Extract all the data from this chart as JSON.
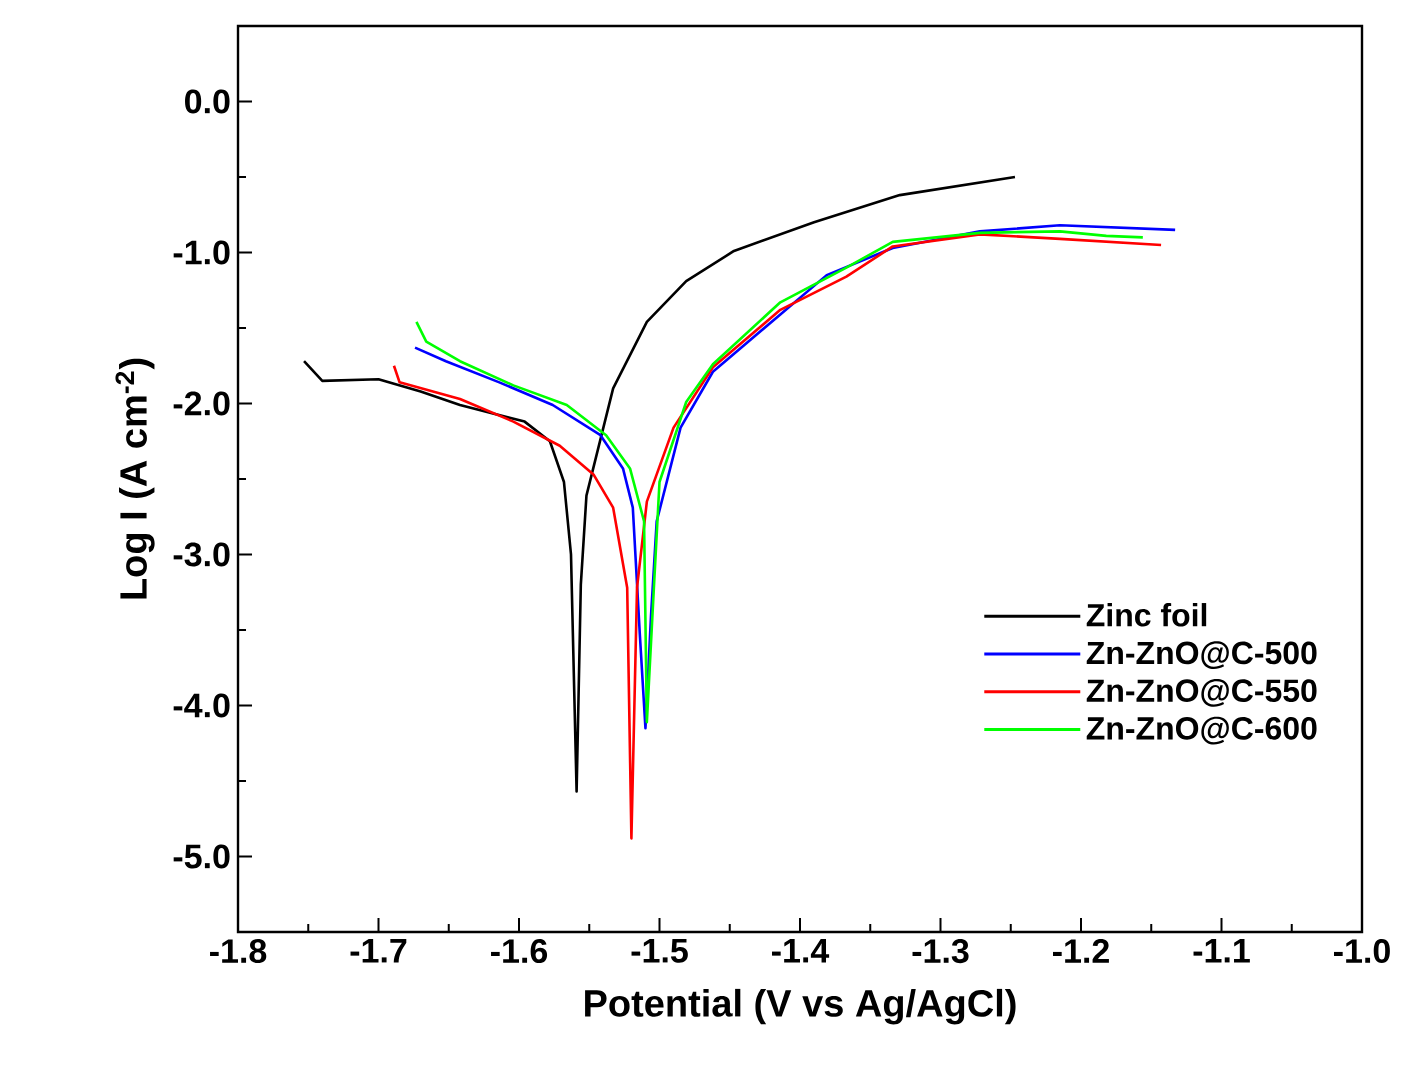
{
  "chart_data": {
    "type": "line",
    "xlabel": "Potential (V vs Ag/AgCl)",
    "ylabel": "Log I (A cm$^{-2}$)",
    "xlim": [
      -1.8,
      -1.0
    ],
    "ylim": [
      -5.5,
      0.5
    ],
    "xticks": [
      -1.8,
      -1.7,
      -1.6,
      -1.5,
      -1.4,
      -1.3,
      -1.2,
      -1.1,
      {
        "value": -1.0,
        "label": "-1.0"
      }
    ],
    "yticks": [
      {
        "value": 0,
        "label": "0.0"
      },
      {
        "value": -1,
        "label": "-1.0"
      },
      {
        "value": -2,
        "label": "-2.0"
      },
      {
        "value": -3,
        "label": "-3.0"
      },
      {
        "value": -4,
        "label": "-4.0"
      },
      {
        "value": -5,
        "label": "-5.0"
      }
    ],
    "legend": "bottom right",
    "series": [
      {
        "name": "Zinc foil",
        "color": "#000000",
        "x": [
          -1.753,
          -1.74,
          -1.7,
          -1.67,
          -1.642,
          -1.596,
          -1.578,
          -1.568,
          -1.563,
          -1.559,
          -1.556,
          -1.552,
          -1.533,
          -1.509,
          -1.481,
          -1.447,
          -1.39,
          -1.329,
          -1.247
        ],
        "values": [
          -1.72,
          -1.85,
          -1.84,
          -1.92,
          -2.01,
          -2.12,
          -2.25,
          -2.52,
          -3.0,
          -4.57,
          -3.2,
          -2.61,
          -1.9,
          -1.46,
          -1.19,
          -0.99,
          -0.8,
          -0.62,
          -0.5
        ]
      },
      {
        "name": "Zn-ZnO@C-500",
        "color": "#0000ff",
        "x": [
          -1.674,
          -1.652,
          -1.614,
          -1.576,
          -1.542,
          -1.526,
          -1.519,
          -1.514,
          -1.51,
          -1.506,
          -1.502,
          -1.485,
          -1.462,
          -1.414,
          -1.381,
          -1.334,
          -1.272,
          -1.215,
          -1.133
        ],
        "values": [
          -1.63,
          -1.72,
          -1.86,
          -2.01,
          -2.21,
          -2.43,
          -2.69,
          -3.53,
          -4.15,
          -3.4,
          -2.78,
          -2.16,
          -1.79,
          -1.41,
          -1.15,
          -0.97,
          -0.86,
          -0.82,
          -0.85
        ]
      },
      {
        "name": "Zn-ZnO@C-550",
        "color": "#ff0000",
        "x": [
          -1.689,
          -1.685,
          -1.642,
          -1.604,
          -1.571,
          -1.547,
          -1.533,
          -1.523,
          -1.52,
          -1.516,
          -1.509,
          -1.49,
          -1.462,
          -1.414,
          -1.367,
          -1.334,
          -1.272,
          -1.215,
          -1.143
        ],
        "values": [
          -1.75,
          -1.86,
          -1.97,
          -2.12,
          -2.28,
          -2.47,
          -2.69,
          -3.22,
          -4.88,
          -3.22,
          -2.65,
          -2.16,
          -1.76,
          -1.38,
          -1.16,
          -0.96,
          -0.88,
          -0.91,
          -0.95
        ]
      },
      {
        "name": "Zn-ZnO@C-600",
        "color": "#00ff00",
        "x": [
          -1.673,
          -1.666,
          -1.642,
          -1.604,
          -1.566,
          -1.538,
          -1.521,
          -1.511,
          -1.509,
          -1.504,
          -1.5,
          -1.481,
          -1.462,
          -1.414,
          -1.367,
          -1.334,
          -1.272,
          -1.215,
          -1.182,
          -1.156
        ],
        "values": [
          -1.46,
          -1.59,
          -1.72,
          -1.88,
          -2.01,
          -2.21,
          -2.43,
          -2.78,
          -4.11,
          -3.22,
          -2.52,
          -1.99,
          -1.74,
          -1.33,
          -1.1,
          -0.93,
          -0.87,
          -0.86,
          -0.89,
          -0.9
        ]
      }
    ]
  }
}
